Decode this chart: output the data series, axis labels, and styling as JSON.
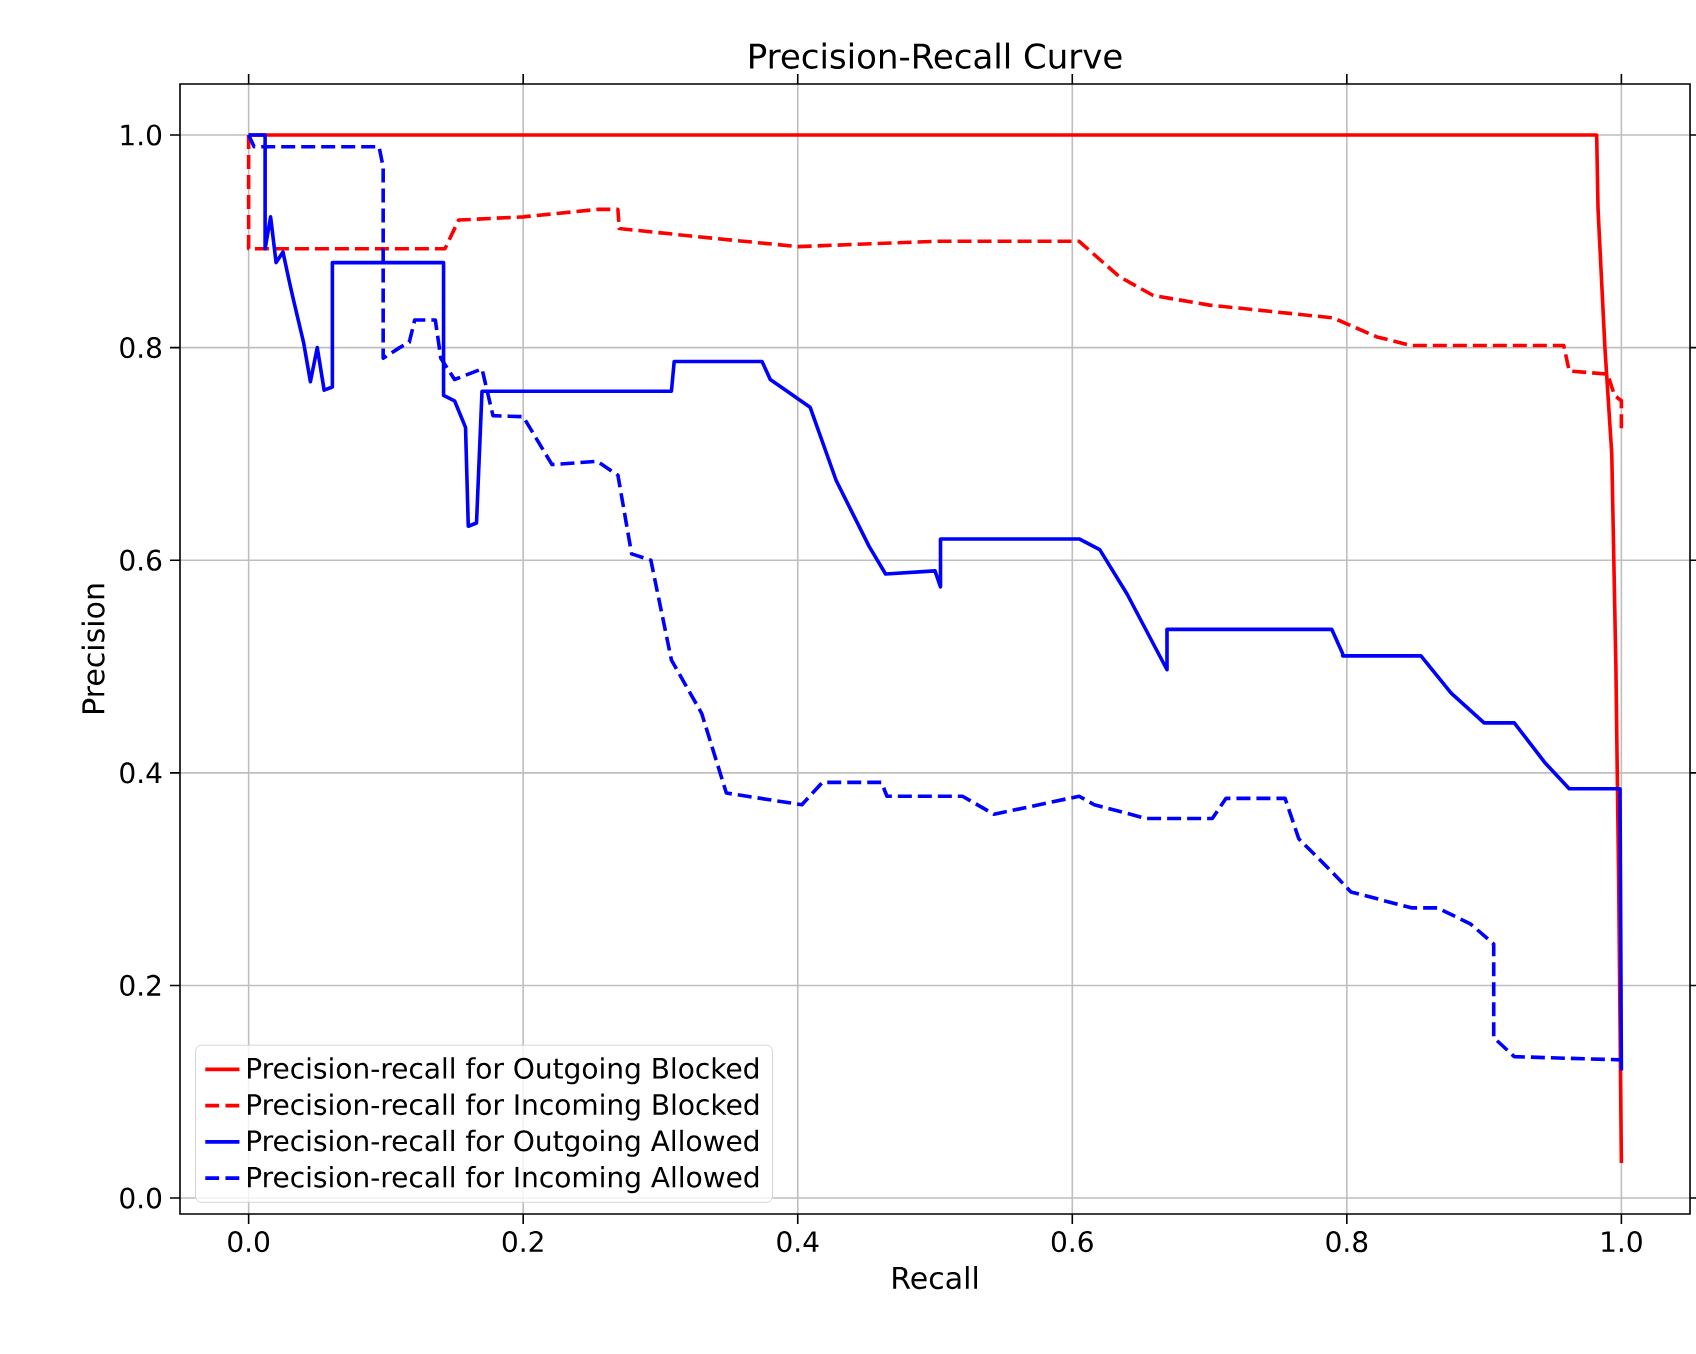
{
  "chart_data": {
    "type": "line",
    "title": "Precision-Recall Curve",
    "xlabel": "Recall",
    "ylabel": "Precision",
    "xlim": [
      -0.05,
      1.05
    ],
    "ylim": [
      -0.015,
      1.048
    ],
    "xticks": [
      {
        "value": 0,
        "label": "0.0"
      },
      {
        "value": 0.2,
        "label": "0.2"
      },
      {
        "value": 0.4,
        "label": "0.4"
      },
      {
        "value": 0.6,
        "label": "0.6"
      },
      {
        "value": 0.8,
        "label": "0.8"
      },
      {
        "value": 1,
        "label": "1.0"
      }
    ],
    "yticks": [
      {
        "value": 0,
        "label": "0.0"
      },
      {
        "value": 0.2,
        "label": "0.2"
      },
      {
        "value": 0.4,
        "label": "0.4"
      },
      {
        "value": 0.6,
        "label": "0.6"
      },
      {
        "value": 0.8,
        "label": "0.8"
      },
      {
        "value": 1,
        "label": "1.0"
      }
    ],
    "grid": true,
    "legend": "bottom left",
    "marker": "none",
    "series": [
      {
        "name": "Precision-recall for Outgoing Blocked",
        "color": "#ff0000",
        "line_style": "solid",
        "x": [
          0,
          0.982,
          0.983,
          0.988,
          0.993,
          0.996,
          0.998,
          1.0
        ],
        "values": [
          1.0,
          1.0,
          0.93,
          0.8,
          0.7,
          0.5,
          0.3,
          0.033
        ]
      },
      {
        "name": "Precision-recall for Incoming Blocked",
        "color": "#ff0000",
        "line_style": "dashed",
        "x": [
          0,
          0,
          0.143,
          0.153,
          0.2,
          0.254,
          0.269,
          0.27,
          0.322,
          0.4,
          0.5,
          0.605,
          0.634,
          0.659,
          0.7,
          0.775,
          0.79,
          0.822,
          0.847,
          0.958,
          0.962,
          0.99,
          0.995,
          1.0,
          1.0
        ],
        "values": [
          1.0,
          0.893,
          0.893,
          0.92,
          0.923,
          0.93,
          0.93,
          0.912,
          0.905,
          0.895,
          0.9,
          0.9,
          0.867,
          0.849,
          0.84,
          0.83,
          0.828,
          0.81,
          0.802,
          0.802,
          0.778,
          0.775,
          0.755,
          0.75,
          0.72
        ]
      },
      {
        "name": "Precision-recall for Outgoing Allowed",
        "color": "#0000ff",
        "line_style": "solid",
        "x": [
          0,
          0.012,
          0.012,
          0.016,
          0.02,
          0.025,
          0.03,
          0.033,
          0.04,
          0.045,
          0.05,
          0.055,
          0.061,
          0.061,
          0.142,
          0.142,
          0.15,
          0.158,
          0.16,
          0.166,
          0.17,
          0.308,
          0.31,
          0.374,
          0.38,
          0.409,
          0.428,
          0.452,
          0.464,
          0.5,
          0.504,
          0.504,
          0.605,
          0.62,
          0.64,
          0.669,
          0.669,
          0.789,
          0.797,
          0.797,
          0.854,
          0.876,
          0.9,
          0.922,
          0.944,
          0.962,
          0.999,
          1.0
        ],
        "values": [
          1.0,
          1.0,
          0.893,
          0.923,
          0.88,
          0.89,
          0.86,
          0.843,
          0.805,
          0.768,
          0.8,
          0.76,
          0.763,
          0.88,
          0.88,
          0.755,
          0.75,
          0.725,
          0.632,
          0.635,
          0.759,
          0.759,
          0.787,
          0.787,
          0.77,
          0.744,
          0.675,
          0.613,
          0.587,
          0.59,
          0.575,
          0.62,
          0.62,
          0.61,
          0.568,
          0.497,
          0.535,
          0.535,
          0.512,
          0.51,
          0.51,
          0.475,
          0.447,
          0.447,
          0.41,
          0.385,
          0.385,
          0.12
        ]
      },
      {
        "name": "Precision-recall for Incoming Allowed",
        "color": "#0000ff",
        "line_style": "dashed",
        "x": [
          0,
          0.004,
          0.095,
          0.098,
          0.098,
          0.11,
          0.117,
          0.121,
          0.136,
          0.14,
          0.15,
          0.158,
          0.17,
          0.178,
          0.2,
          0.221,
          0.254,
          0.269,
          0.279,
          0.293,
          0.308,
          0.33,
          0.348,
          0.403,
          0.418,
          0.461,
          0.465,
          0.52,
          0.543,
          0.605,
          0.616,
          0.654,
          0.702,
          0.712,
          0.755,
          0.765,
          0.789,
          0.803,
          0.847,
          0.866,
          0.89,
          0.907,
          0.907,
          0.922,
          1.0
        ],
        "values": [
          1.0,
          0.989,
          0.989,
          0.97,
          0.79,
          0.8,
          0.805,
          0.826,
          0.826,
          0.79,
          0.77,
          0.774,
          0.78,
          0.736,
          0.735,
          0.69,
          0.693,
          0.68,
          0.606,
          0.6,
          0.506,
          0.456,
          0.381,
          0.37,
          0.391,
          0.391,
          0.378,
          0.378,
          0.361,
          0.378,
          0.37,
          0.357,
          0.357,
          0.376,
          0.376,
          0.338,
          0.307,
          0.288,
          0.273,
          0.273,
          0.258,
          0.239,
          0.151,
          0.133,
          0.13
        ]
      }
    ]
  }
}
